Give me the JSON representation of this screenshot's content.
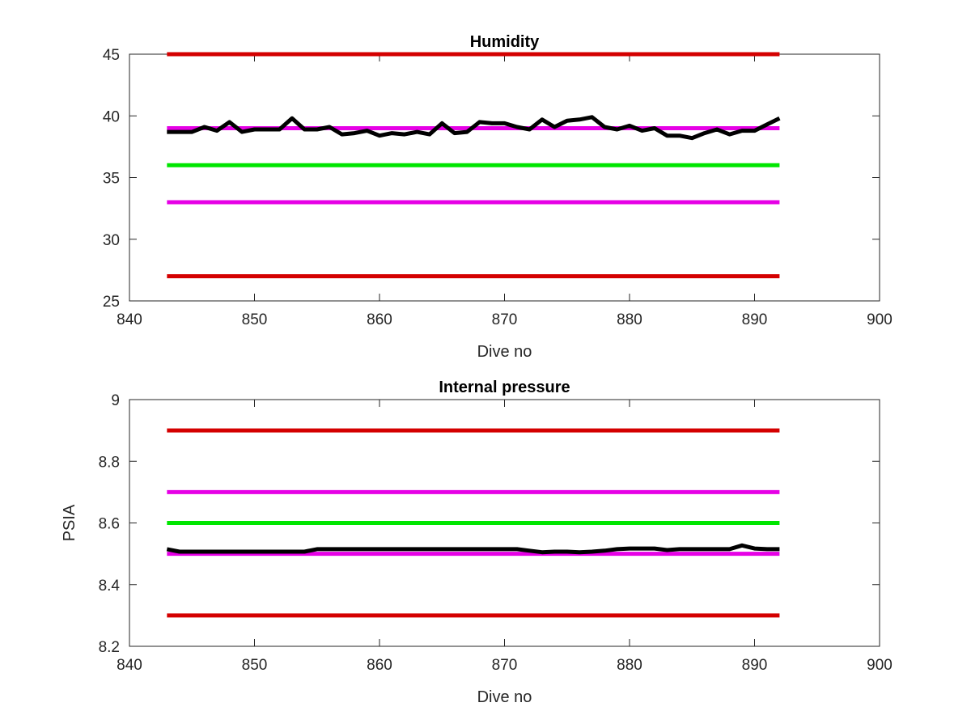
{
  "chart_data": [
    {
      "type": "line",
      "title": "Humidity",
      "xlabel": "Dive no",
      "ylabel": "",
      "xlim": [
        840,
        900
      ],
      "ylim": [
        25,
        45
      ],
      "xticks": [
        "840",
        "850",
        "860",
        "870",
        "880",
        "890",
        "900"
      ],
      "yticks": [
        "25",
        "30",
        "35",
        "40",
        "45"
      ],
      "reference_lines": [
        {
          "color": "#d40000",
          "y": 45,
          "x": [
            843,
            892
          ]
        },
        {
          "color": "#e600e6",
          "y": 39,
          "x": [
            843,
            892
          ]
        },
        {
          "color": "#00e600",
          "y": 36,
          "x": [
            843,
            892
          ]
        },
        {
          "color": "#e600e6",
          "y": 33,
          "x": [
            843,
            892
          ]
        },
        {
          "color": "#d40000",
          "y": 27,
          "x": [
            843,
            892
          ]
        }
      ],
      "series": [
        {
          "color": "#000000",
          "x": [
            843,
            844,
            845,
            846,
            847,
            848,
            849,
            850,
            851,
            852,
            853,
            854,
            855,
            856,
            857,
            858,
            859,
            860,
            861,
            862,
            863,
            864,
            865,
            866,
            867,
            868,
            869,
            870,
            871,
            872,
            873,
            874,
            875,
            876,
            877,
            878,
            879,
            880,
            881,
            882,
            883,
            884,
            885,
            886,
            887,
            888,
            889,
            890,
            891,
            892
          ],
          "y": [
            38.7,
            38.7,
            38.7,
            39.1,
            38.8,
            39.5,
            38.7,
            38.9,
            38.9,
            38.9,
            39.8,
            38.9,
            38.9,
            39.1,
            38.5,
            38.6,
            38.8,
            38.4,
            38.6,
            38.5,
            38.7,
            38.5,
            39.4,
            38.6,
            38.7,
            39.5,
            39.4,
            39.4,
            39.1,
            38.9,
            39.7,
            39.1,
            39.6,
            39.7,
            39.9,
            39.1,
            38.9,
            39.2,
            38.8,
            39.0,
            38.4,
            38.4,
            38.2,
            38.6,
            38.9,
            38.5,
            38.8,
            38.8,
            39.3,
            39.8
          ]
        }
      ]
    },
    {
      "type": "line",
      "title": "Internal pressure",
      "xlabel": "Dive no",
      "ylabel": "PSIA",
      "xlim": [
        840,
        900
      ],
      "ylim": [
        8.2,
        9.0
      ],
      "xticks": [
        "840",
        "850",
        "860",
        "870",
        "880",
        "890",
        "900"
      ],
      "yticks": [
        "8.2",
        "8.4",
        "8.6",
        "8.8",
        "9"
      ],
      "reference_lines": [
        {
          "color": "#d40000",
          "y": 8.9,
          "x": [
            843,
            892
          ]
        },
        {
          "color": "#e600e6",
          "y": 8.7,
          "x": [
            843,
            892
          ]
        },
        {
          "color": "#00e600",
          "y": 8.6,
          "x": [
            843,
            892
          ]
        },
        {
          "color": "#e600e6",
          "y": 8.5,
          "x": [
            843,
            892
          ]
        },
        {
          "color": "#d40000",
          "y": 8.3,
          "x": [
            843,
            892
          ]
        }
      ],
      "series": [
        {
          "color": "#000000",
          "x": [
            843,
            844,
            845,
            846,
            847,
            848,
            849,
            850,
            851,
            852,
            853,
            854,
            855,
            856,
            857,
            858,
            859,
            860,
            861,
            862,
            863,
            864,
            865,
            866,
            867,
            868,
            869,
            870,
            871,
            872,
            873,
            874,
            875,
            876,
            877,
            878,
            879,
            880,
            881,
            882,
            883,
            884,
            885,
            886,
            887,
            888,
            889,
            890,
            891,
            892
          ],
          "y": [
            8.515,
            8.507,
            8.507,
            8.507,
            8.507,
            8.507,
            8.507,
            8.507,
            8.507,
            8.507,
            8.507,
            8.507,
            8.515,
            8.515,
            8.515,
            8.515,
            8.515,
            8.515,
            8.515,
            8.515,
            8.515,
            8.515,
            8.515,
            8.515,
            8.515,
            8.515,
            8.515,
            8.515,
            8.515,
            8.51,
            8.505,
            8.507,
            8.507,
            8.505,
            8.507,
            8.51,
            8.515,
            8.517,
            8.517,
            8.517,
            8.512,
            8.515,
            8.515,
            8.515,
            8.515,
            8.515,
            8.527,
            8.517,
            8.515,
            8.515
          ]
        }
      ]
    }
  ]
}
